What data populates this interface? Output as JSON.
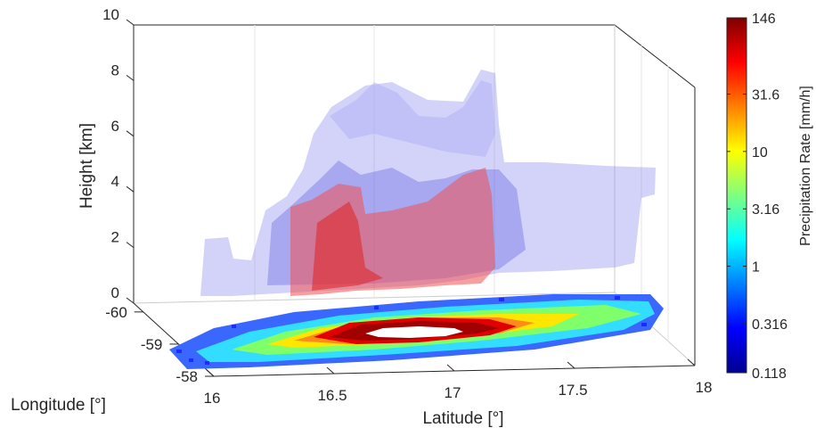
{
  "chart_data": {
    "type": "3d-volume",
    "xlabel": "Latitude [°]",
    "ylabel": "Longitude [°]",
    "zlabel": "Height [km]",
    "x_ticks": [
      "16",
      "16.5",
      "17",
      "17.5",
      "18"
    ],
    "y_ticks": [
      "-60",
      "-59",
      "-58"
    ],
    "z_ticks": [
      "0",
      "2",
      "4",
      "6",
      "8",
      "10"
    ],
    "xlim": [
      16,
      18
    ],
    "ylim": [
      -60,
      -58
    ],
    "zlim": [
      0,
      10
    ],
    "colorbar": {
      "label": "Precipitation Rate [mm/h]",
      "scale": "log",
      "colormap": "jet",
      "tick_labels": [
        "146",
        "31.6",
        "10",
        "3.16",
        "1",
        "0.316",
        "0.118"
      ],
      "tick_values": [
        146,
        31.6,
        10,
        3.16,
        1,
        0.316,
        0.118
      ],
      "range": [
        0.118,
        146
      ]
    },
    "colors": {
      "isosurface_low": "#7070ee",
      "isosurface_high": "#ee2020",
      "axis": "#262626"
    }
  }
}
